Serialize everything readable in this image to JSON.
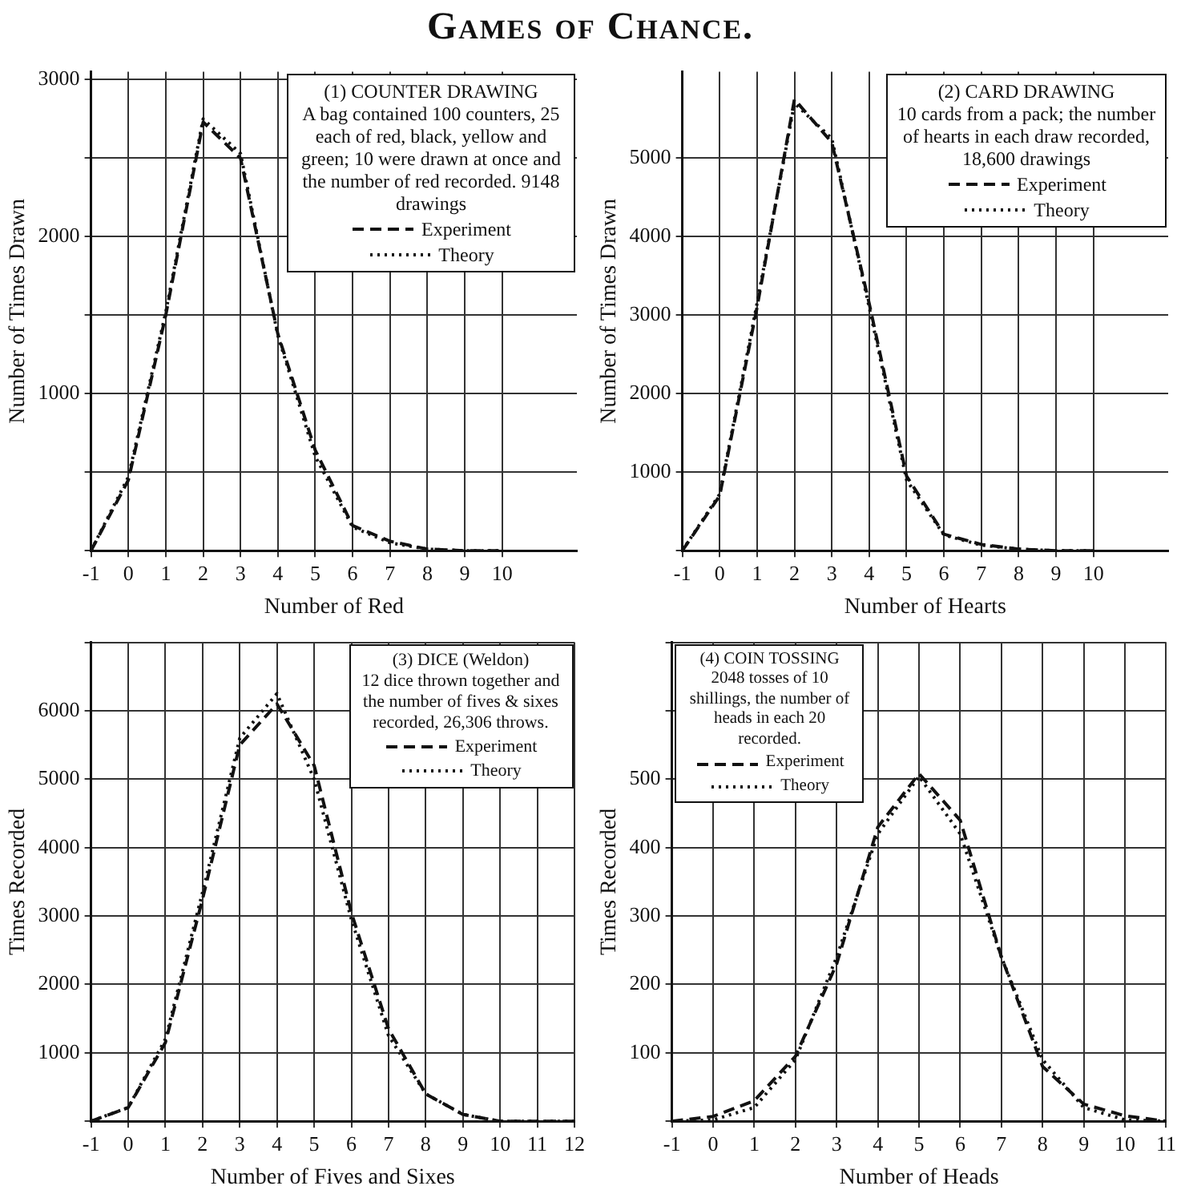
{
  "chart_data": [
    {
      "type": "line",
      "title": "Games of Chance.",
      "xlabel": "Number of Red",
      "ylabel": "Number of Times Drawn",
      "annotations": [
        "(1) COUNTER DRAWING",
        "A bag contained 100 counters, 25 each of red, black, yellow and green; 10 were drawn at once and the number of red recorded. 9148 drawings"
      ],
      "x": [
        -1,
        0,
        1,
        2,
        3,
        4,
        5,
        6,
        7,
        8,
        9,
        10
      ],
      "series": [
        {
          "name": "Experiment",
          "color": "#111111",
          "line_style": "dashed",
          "values": [
            0,
            450,
            1500,
            2730,
            2500,
            1380,
            640,
            160,
            60,
            10,
            0,
            0
          ]
        },
        {
          "name": "Theory",
          "color": "#111111",
          "line_style": "dotted",
          "values": [
            0,
            470,
            1520,
            2750,
            2530,
            1370,
            600,
            150,
            50,
            10,
            0,
            0
          ]
        }
      ],
      "xlim": [
        -1,
        12
      ],
      "xticks": [
        -1,
        0,
        1,
        2,
        3,
        4,
        5,
        6,
        7,
        8,
        9,
        10
      ],
      "ylim": [
        0,
        3050
      ],
      "yticks": [
        {
          "value": 0,
          "label": null
        },
        {
          "value": 500,
          "label": null
        },
        1000,
        {
          "value": 1500,
          "label": null
        },
        2000,
        {
          "value": 2500,
          "label": null
        },
        3000
      ],
      "grid": true,
      "legend": "top right"
    },
    {
      "type": "line",
      "xlabel": "Number of Hearts",
      "ylabel": "Number of Times Drawn",
      "annotations": [
        "(2) CARD DRAWING",
        "10 cards from a pack; the number of hearts in each draw recorded, 18,600 drawings"
      ],
      "x": [
        -1,
        0,
        1,
        2,
        3,
        4,
        5,
        6,
        7,
        8,
        9,
        10
      ],
      "series": [
        {
          "name": "Experiment",
          "color": "#111111",
          "line_style": "dashed",
          "values": [
            0,
            700,
            3100,
            5750,
            5200,
            3150,
            950,
            210,
            80,
            20,
            0,
            0
          ]
        },
        {
          "name": "Theory",
          "color": "#111111",
          "line_style": "dotted",
          "values": [
            0,
            720,
            3150,
            5700,
            5250,
            3100,
            900,
            200,
            70,
            20,
            0,
            0
          ]
        }
      ],
      "xlim": [
        -1,
        12
      ],
      "xticks": [
        -1,
        0,
        1,
        2,
        3,
        4,
        5,
        6,
        7,
        8,
        9,
        10
      ],
      "ylim": [
        0,
        6100
      ],
      "yticks": [
        {
          "value": 0,
          "label": null
        },
        1000,
        2000,
        3000,
        4000,
        5000
      ],
      "grid": true,
      "legend": "top right"
    },
    {
      "type": "line",
      "xlabel": "Number of Fives and Sixes",
      "ylabel": "Times Recorded",
      "annotations": [
        "(3) DICE (Weldon)",
        "12 dice thrown together and the number of fives & sixes recorded, 26,306 throws."
      ],
      "x": [
        -1,
        0,
        1,
        2,
        3,
        4,
        5,
        6,
        7,
        8,
        9,
        10,
        11,
        12
      ],
      "series": [
        {
          "name": "Experiment",
          "color": "#111111",
          "line_style": "dashed",
          "values": [
            0,
            200,
            1150,
            3250,
            5500,
            6100,
            5200,
            3050,
            1350,
            400,
            100,
            0,
            0,
            0
          ]
        },
        {
          "name": "Theory",
          "color": "#111111",
          "line_style": "dotted",
          "values": [
            0,
            200,
            1200,
            3350,
            5600,
            6250,
            5000,
            2950,
            1250,
            400,
            100,
            0,
            0,
            0
          ]
        }
      ],
      "xlim": [
        -1,
        12
      ],
      "xticks": [
        -1,
        0,
        1,
        2,
        3,
        4,
        5,
        6,
        7,
        8,
        9,
        10,
        11,
        12
      ],
      "ylim": [
        0,
        7000
      ],
      "yticks": [
        {
          "value": 0,
          "label": null
        },
        1000,
        2000,
        3000,
        4000,
        5000,
        6000,
        {
          "value": 7000,
          "label": null
        }
      ],
      "grid": true,
      "legend": "top right"
    },
    {
      "type": "line",
      "xlabel": "Number of Heads",
      "ylabel": "Times Recorded",
      "annotations": [
        "(4) COIN TOSSING",
        "2048 tosses of 10 shillings, the number of heads in each 20 recorded."
      ],
      "x": [
        -1,
        0,
        1,
        2,
        3,
        4,
        5,
        6,
        7,
        8,
        9,
        10,
        11
      ],
      "series": [
        {
          "name": "Experiment",
          "color": "#111111",
          "line_style": "dashed",
          "values": [
            0,
            7,
            30,
            95,
            230,
            430,
            508,
            440,
            240,
            80,
            25,
            8,
            0
          ]
        },
        {
          "name": "Theory",
          "color": "#111111",
          "line_style": "dotted",
          "values": [
            0,
            2,
            20,
            90,
            240,
            420,
            504,
            420,
            240,
            90,
            20,
            2,
            0
          ]
        }
      ],
      "xlim": [
        -1,
        11
      ],
      "xticks": [
        -1,
        0,
        1,
        2,
        3,
        4,
        5,
        6,
        7,
        8,
        9,
        10,
        11
      ],
      "ylim": [
        0,
        700
      ],
      "yticks": [
        {
          "value": 0,
          "label": null
        },
        100,
        200,
        300,
        400,
        500,
        {
          "value": 600,
          "label": null
        },
        {
          "value": 700,
          "label": null
        }
      ],
      "grid": true,
      "legend": "top left"
    }
  ]
}
